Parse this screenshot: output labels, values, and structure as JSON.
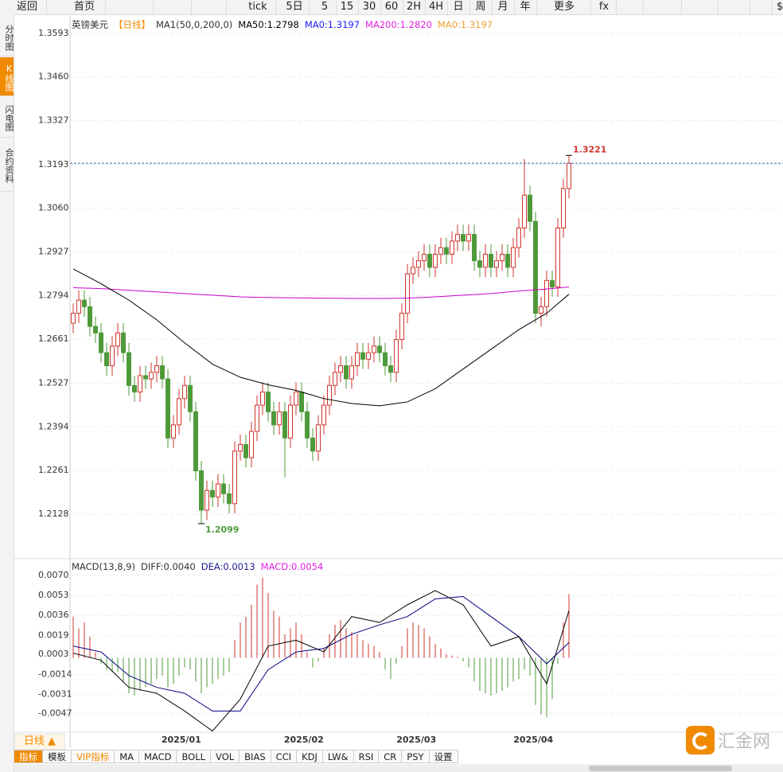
{
  "toolbar": [
    "返回",
    "首页",
    "tick",
    "5日",
    "5",
    "15",
    "30",
    "60",
    "2H",
    "4H",
    "日",
    "周",
    "月",
    "年",
    "更多",
    "fx",
    "$"
  ],
  "side_tabs": [
    "分时图",
    "K线图",
    "闪电图",
    "合约资料"
  ],
  "chart_data": [
    {
      "type": "candlestick",
      "legend": [
        {
          "text": "英镑美元",
          "color": "#333333"
        },
        {
          "text": "【日线】",
          "color": "#f08a00"
        },
        {
          "text": "MA1(50,0,200,0)",
          "color": "#333333"
        },
        {
          "text": "MA50:1.2798",
          "color": "#000000"
        },
        {
          "text": "MA0:1.3197",
          "color": "#1a1aff"
        },
        {
          "text": "MA200:1.2820",
          "color": "#e020e0"
        },
        {
          "text": "MA0:1.3197",
          "color": "#f0a030"
        }
      ],
      "up_color": "#d0342c",
      "down_color": "#4e9a3a",
      "ma50_color": "#000000",
      "ma200_color": "#cc00cc",
      "open": [
        1.271,
        1.274,
        1.278,
        1.276,
        1.27,
        1.268,
        1.262,
        1.258,
        1.264,
        1.268,
        1.262,
        1.252,
        1.25,
        1.255,
        1.254,
        1.256,
        1.258,
        1.254,
        1.236,
        1.24,
        1.248,
        1.252,
        1.244,
        1.226,
        1.214,
        1.22,
        1.218,
        1.222,
        1.219,
        1.216,
        1.232,
        1.234,
        1.23,
        1.238,
        1.246,
        1.25,
        1.244,
        1.24,
        1.244,
        1.236,
        1.246,
        1.25,
        1.244,
        1.236,
        1.232,
        1.24,
        1.246,
        1.252,
        1.256,
        1.258,
        1.254,
        1.258,
        1.262,
        1.26,
        1.262,
        1.264,
        1.262,
        1.258,
        1.256,
        1.266,
        1.274,
        1.286,
        1.288,
        1.29,
        1.292,
        1.288,
        1.292,
        1.294,
        1.292,
        1.296,
        1.298,
        1.296,
        1.298,
        1.29,
        1.288,
        1.292,
        1.288,
        1.29,
        1.292,
        1.288,
        1.294,
        1.3,
        1.31,
        1.302,
        1.274,
        1.276,
        1.284,
        1.282,
        1.3,
        1.312
      ],
      "high": [
        1.277,
        1.281,
        1.281,
        1.279,
        1.273,
        1.271,
        1.265,
        1.267,
        1.271,
        1.271,
        1.265,
        1.255,
        1.258,
        1.258,
        1.259,
        1.261,
        1.261,
        1.257,
        1.243,
        1.251,
        1.255,
        1.255,
        1.247,
        1.229,
        1.223,
        1.223,
        1.225,
        1.225,
        1.222,
        1.235,
        1.237,
        1.237,
        1.241,
        1.249,
        1.253,
        1.253,
        1.247,
        1.247,
        1.247,
        1.249,
        1.253,
        1.253,
        1.247,
        1.239,
        1.243,
        1.249,
        1.255,
        1.259,
        1.261,
        1.261,
        1.261,
        1.265,
        1.265,
        1.265,
        1.267,
        1.267,
        1.265,
        1.261,
        1.269,
        1.277,
        1.289,
        1.291,
        1.293,
        1.295,
        1.295,
        1.295,
        1.297,
        1.297,
        1.299,
        1.301,
        1.301,
        1.301,
        1.301,
        1.293,
        1.295,
        1.295,
        1.293,
        1.295,
        1.295,
        1.297,
        1.303,
        1.321,
        1.313,
        1.305,
        1.279,
        1.287,
        1.287,
        1.303,
        1.315,
        1.3221
      ],
      "low": [
        1.268,
        1.271,
        1.273,
        1.267,
        1.265,
        1.259,
        1.255,
        1.255,
        1.261,
        1.259,
        1.249,
        1.247,
        1.247,
        1.251,
        1.251,
        1.253,
        1.251,
        1.233,
        1.233,
        1.237,
        1.245,
        1.241,
        1.223,
        1.2099,
        1.211,
        1.215,
        1.215,
        1.216,
        1.213,
        1.213,
        1.229,
        1.227,
        1.227,
        1.235,
        1.243,
        1.241,
        1.237,
        1.237,
        1.224,
        1.233,
        1.243,
        1.241,
        1.233,
        1.229,
        1.229,
        1.237,
        1.243,
        1.249,
        1.253,
        1.251,
        1.251,
        1.255,
        1.257,
        1.257,
        1.259,
        1.259,
        1.255,
        1.253,
        1.253,
        1.263,
        1.271,
        1.283,
        1.285,
        1.287,
        1.285,
        1.285,
        1.289,
        1.289,
        1.289,
        1.293,
        1.293,
        1.293,
        1.287,
        1.285,
        1.285,
        1.285,
        1.285,
        1.287,
        1.285,
        1.285,
        1.291,
        1.297,
        1.299,
        1.271,
        1.27,
        1.273,
        1.279,
        1.279,
        1.297,
        1.309
      ],
      "close": [
        1.274,
        1.278,
        1.276,
        1.27,
        1.268,
        1.262,
        1.258,
        1.264,
        1.268,
        1.262,
        1.252,
        1.25,
        1.255,
        1.254,
        1.256,
        1.258,
        1.254,
        1.236,
        1.24,
        1.248,
        1.252,
        1.244,
        1.226,
        1.214,
        1.22,
        1.218,
        1.222,
        1.219,
        1.216,
        1.232,
        1.234,
        1.23,
        1.238,
        1.246,
        1.25,
        1.244,
        1.24,
        1.244,
        1.236,
        1.246,
        1.25,
        1.244,
        1.236,
        1.232,
        1.24,
        1.246,
        1.252,
        1.256,
        1.258,
        1.254,
        1.258,
        1.262,
        1.26,
        1.262,
        1.264,
        1.262,
        1.258,
        1.256,
        1.266,
        1.274,
        1.286,
        1.288,
        1.29,
        1.292,
        1.288,
        1.292,
        1.294,
        1.292,
        1.296,
        1.298,
        1.296,
        1.298,
        1.29,
        1.288,
        1.292,
        1.288,
        1.29,
        1.292,
        1.288,
        1.294,
        1.3,
        1.31,
        1.302,
        1.274,
        1.276,
        1.284,
        1.282,
        1.3,
        1.312,
        1.3197
      ],
      "ma_index": [
        0,
        5,
        10,
        15,
        20,
        25,
        30,
        35,
        40,
        45,
        50,
        55,
        60,
        65,
        70,
        75,
        80,
        85,
        89
      ],
      "ma50": [
        1.2875,
        1.283,
        1.278,
        1.272,
        1.265,
        1.2585,
        1.2545,
        1.2522,
        1.2505,
        1.248,
        1.2465,
        1.2458,
        1.247,
        1.251,
        1.257,
        1.263,
        1.269,
        1.274,
        1.2798
      ],
      "ma200": [
        1.2818,
        1.2815,
        1.281,
        1.2805,
        1.28,
        1.2795,
        1.279,
        1.2788,
        1.2787,
        1.2786,
        1.2785,
        1.2785,
        1.2786,
        1.279,
        1.2795,
        1.28,
        1.2808,
        1.2814,
        1.282
      ],
      "ylim": [
        1.1997,
        1.3646
      ],
      "yticks": [
        1.3593,
        {
          "value": 1.346,
          "label": "1.3460"
        },
        1.3327,
        1.3193,
        {
          "value": 1.306,
          "label": "1.3060"
        },
        1.2927,
        1.2794,
        1.2661,
        1.2527,
        1.2394,
        1.2261,
        1.2128
      ],
      "date_labels": [
        "2025/01",
        "2025/02",
        "2025/03",
        "2025/04"
      ],
      "date_label_index": [
        19.4,
        41.4,
        61.6,
        82.6
      ]
    },
    {
      "type": "macd",
      "legend": [
        {
          "text": "MACD(13,8,9)",
          "color": "#333333"
        },
        {
          "text": "DIFF:0.0040",
          "color": "#333333"
        },
        {
          "text": "DEA:0.0013",
          "color": "#1a1a8c"
        },
        {
          "text": "MACD:0.0054",
          "color": "#e020e0"
        }
      ],
      "up_color": "#d0342c",
      "down_color": "#4e9a3a",
      "diff_color": "#000000",
      "dea_color": "#000080",
      "histogram": [
        0.0035,
        0.0025,
        0.003,
        0.0018,
        0.0005,
        -0.0005,
        -0.001,
        -0.0012,
        -0.0012,
        -0.002,
        -0.003,
        -0.0032,
        -0.0028,
        -0.0025,
        -0.0022,
        -0.0018,
        -0.0015,
        -0.0025,
        -0.0022,
        -0.0015,
        -0.0008,
        -0.001,
        -0.002,
        -0.003,
        -0.0025,
        -0.0022,
        -0.0018,
        -0.0015,
        -0.0012,
        0.0015,
        0.003,
        0.0035,
        0.0045,
        0.0062,
        0.0068,
        0.0055,
        0.004,
        0.0035,
        0.002,
        0.0025,
        0.003,
        0.002,
        0.0005,
        -0.0008,
        -0.0003,
        0.0008,
        0.002,
        0.0028,
        0.0032,
        0.0025,
        0.0022,
        0.002,
        0.0015,
        0.0012,
        0.001,
        0.0005,
        -0.001,
        -0.0018,
        -0.0005,
        0.001,
        0.0025,
        0.003,
        0.0028,
        0.0025,
        0.0018,
        0.0012,
        0.0008,
        0.0003,
        0.0002,
        0.0001,
        -0.0003,
        -0.0008,
        -0.002,
        -0.0028,
        -0.003,
        -0.0032,
        -0.003,
        -0.0028,
        -0.0025,
        -0.002,
        -0.0018,
        -0.001,
        -0.0015,
        -0.004,
        -0.0048,
        -0.005,
        -0.0035,
        -0.0005,
        0.003,
        0.0054
      ],
      "line_index": [
        0,
        5,
        10,
        15,
        20,
        25,
        30,
        35,
        40,
        45,
        50,
        55,
        60,
        65,
        70,
        75,
        80,
        85,
        89
      ],
      "diff": [
        0.0004,
        -0.0002,
        -0.0025,
        -0.003,
        -0.0045,
        -0.0062,
        -0.0035,
        0.001,
        0.0015,
        0.0005,
        0.0035,
        0.003,
        0.0045,
        0.0057,
        0.0045,
        0.001,
        0.0018,
        -0.0022,
        0.004
      ],
      "dea": [
        0.001,
        0.0005,
        -0.0015,
        -0.0025,
        -0.003,
        -0.0045,
        -0.0045,
        -0.001,
        0.0005,
        0.0008,
        0.002,
        0.0028,
        0.0035,
        0.005,
        0.0052,
        0.0035,
        0.0018,
        -0.0005,
        0.0013
      ],
      "ylim": [
        -0.0065,
        0.0082
      ],
      "yticks": [
        {
          "value": 0.007,
          "label": "0.0070"
        },
        0.0053,
        0.0036,
        0.0019,
        0.0003,
        -0.0014,
        -0.0031,
        -0.0047
      ]
    }
  ],
  "bottom": {
    "period": "日线 ▲",
    "tabs": [
      "指标",
      "模板",
      "VIP指标",
      "MA",
      "MACD",
      "BOLL",
      "VOL",
      "BIAS",
      "CCI",
      "KDJ",
      "LW&",
      "RSI",
      "CR",
      "PSY",
      "设置"
    ]
  },
  "logo": "汇金网"
}
